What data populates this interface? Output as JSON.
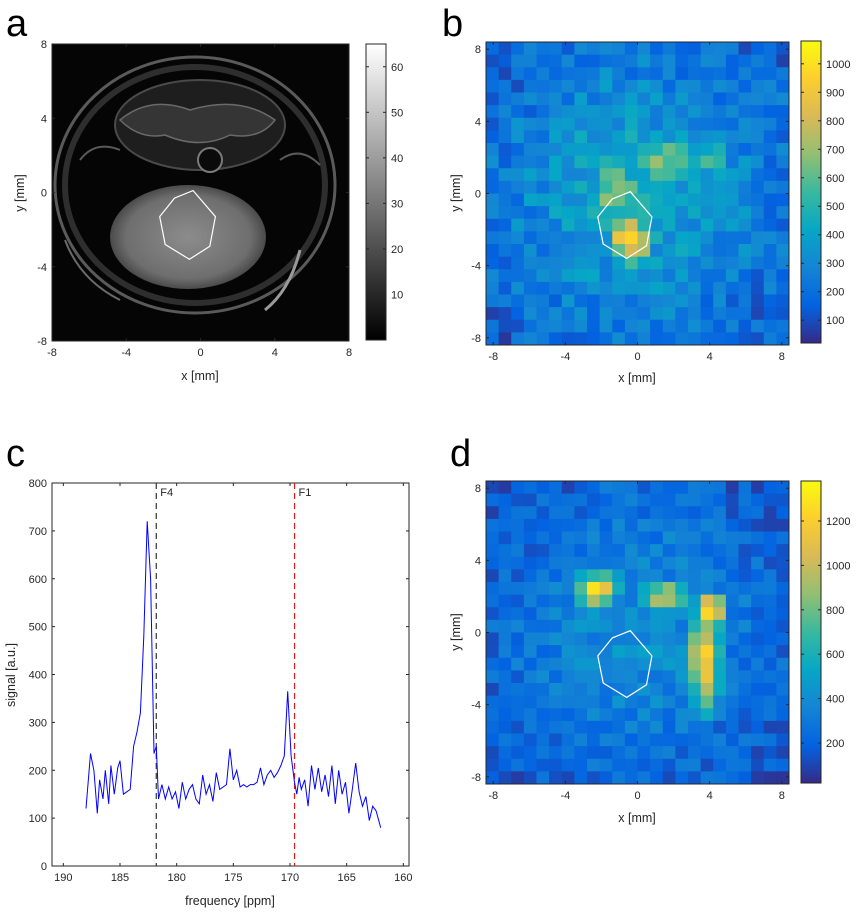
{
  "panels": {
    "a": "a",
    "b": "b",
    "c": "c",
    "d": "d"
  },
  "roi_hexagon_mm": [
    [
      -0.4,
      0.1
    ],
    [
      0.8,
      -1.3
    ],
    [
      0.5,
      -2.9
    ],
    [
      -0.6,
      -3.6
    ],
    [
      -1.9,
      -2.8
    ],
    [
      -2.2,
      -1.3
    ],
    [
      -1.4,
      -0.3
    ]
  ],
  "chart_data": [
    {
      "id": "a",
      "type": "heatmap",
      "colormap": "gray",
      "description_in_image": "grayscale anatomical MR image",
      "xlabel": "x [mm]",
      "ylabel": "y [mm]",
      "xlim": [
        -8,
        8
      ],
      "ylim": [
        -8,
        8
      ],
      "xticks": [
        -8,
        -4,
        0,
        4,
        8
      ],
      "yticks": [
        8,
        4,
        0,
        -4,
        -8
      ],
      "xtick_labels": [
        "-8",
        "-4",
        "0",
        "4",
        "8"
      ],
      "ytick_labels": [
        "8",
        "4",
        "0",
        "-4",
        "-8"
      ],
      "colorbar": {
        "lim": [
          0,
          65
        ],
        "ticks": [
          10,
          20,
          30,
          40,
          50,
          60
        ],
        "labels": [
          "10",
          "20",
          "30",
          "40",
          "50",
          "60"
        ]
      }
    },
    {
      "id": "b",
      "type": "heatmap",
      "colormap": "parula",
      "xlabel": "x [mm]",
      "ylabel": "y [mm]",
      "xlim": [
        -8.4,
        8.4
      ],
      "ylim": [
        -8.4,
        8.4
      ],
      "xticks": [
        -8,
        -4,
        0,
        4,
        8
      ],
      "yticks": [
        8,
        4,
        0,
        -4,
        -8
      ],
      "xtick_labels": [
        "-8",
        "-4",
        "0",
        "4",
        "8"
      ],
      "ytick_labels": [
        "8",
        "4",
        "0",
        "-4",
        "-8"
      ],
      "grid_size": 24,
      "hotspots": [
        {
          "x": -0.4,
          "y": -2.6,
          "value": 1060,
          "sx": 0.9,
          "sy": 1.0
        },
        {
          "x": -1.2,
          "y": 0.2,
          "value": 720,
          "sx": 1.2,
          "sy": 1.2
        },
        {
          "x": 1.4,
          "y": 1.8,
          "value": 620,
          "sx": 1.8,
          "sy": 1.2
        },
        {
          "x": 4.0,
          "y": 1.8,
          "value": 560,
          "sx": 1.2,
          "sy": 0.9
        }
      ],
      "base_value": 330,
      "colorbar": {
        "lim": [
          20,
          1080
        ],
        "ticks": [
          100,
          200,
          300,
          400,
          500,
          600,
          700,
          800,
          900,
          1000
        ],
        "labels": [
          "100",
          "200",
          "300",
          "400",
          "500",
          "600",
          "700",
          "800",
          "900",
          "1000"
        ]
      }
    },
    {
      "id": "c",
      "type": "line",
      "xlabel": "frequency [ppm]",
      "ylabel": "signal [a.u.]",
      "xlim": [
        191,
        159.5
      ],
      "ylim": [
        0,
        800
      ],
      "xticks": [
        190,
        185,
        180,
        175,
        170,
        165,
        160
      ],
      "xtick_labels": [
        "190",
        "185",
        "180",
        "175",
        "170",
        "165",
        "160"
      ],
      "yticks": [
        0,
        100,
        200,
        300,
        400,
        500,
        600,
        700,
        800
      ],
      "ytick_labels": [
        "0",
        "100",
        "200",
        "300",
        "400",
        "500",
        "600",
        "700",
        "800"
      ],
      "series": [
        {
          "name": "spectrum",
          "color": "#0000ff",
          "x": [
            188.0,
            187.6,
            187.3,
            187.0,
            186.8,
            186.5,
            186.3,
            186.0,
            185.8,
            185.5,
            185.2,
            185.0,
            184.7,
            184.4,
            184.1,
            183.8,
            183.5,
            183.2,
            182.9,
            182.6,
            182.3,
            182.0,
            181.8,
            181.6,
            181.3,
            181.0,
            180.7,
            180.4,
            180.1,
            179.8,
            179.5,
            179.2,
            178.9,
            178.6,
            178.3,
            178.0,
            177.7,
            177.4,
            177.1,
            176.8,
            176.5,
            176.2,
            175.9,
            175.6,
            175.3,
            175.0,
            174.7,
            174.4,
            174.1,
            173.8,
            173.5,
            173.2,
            172.9,
            172.6,
            172.3,
            172.0,
            171.7,
            171.4,
            171.1,
            170.8,
            170.5,
            170.2,
            169.9,
            169.6,
            169.4,
            169.2,
            169.0,
            168.7,
            168.4,
            168.1,
            167.8,
            167.5,
            167.2,
            166.9,
            166.6,
            166.3,
            166.0,
            165.7,
            165.4,
            165.1,
            164.8,
            164.5,
            164.2,
            163.9,
            163.6,
            163.3,
            163.0,
            162.7,
            162.4,
            162.0
          ],
          "y": [
            120,
            235,
            200,
            110,
            180,
            140,
            200,
            130,
            210,
            150,
            205,
            220,
            150,
            155,
            160,
            250,
            280,
            320,
            480,
            720,
            600,
            235,
            250,
            140,
            170,
            140,
            165,
            140,
            155,
            120,
            175,
            140,
            160,
            170,
            140,
            130,
            190,
            150,
            170,
            135,
            195,
            160,
            165,
            170,
            245,
            180,
            200,
            165,
            170,
            165,
            170,
            170,
            175,
            205,
            170,
            190,
            200,
            185,
            195,
            210,
            230,
            365,
            230,
            175,
            150,
            185,
            160,
            180,
            125,
            210,
            160,
            205,
            155,
            190,
            145,
            210,
            130,
            200,
            150,
            175,
            110,
            160,
            215,
            155,
            125,
            145,
            95,
            125,
            115,
            80
          ]
        }
      ],
      "vlines": [
        {
          "x": 181.8,
          "label": "F4",
          "color": "#333333"
        },
        {
          "x": 169.6,
          "label": "F1",
          "color": "#e31a1c"
        }
      ]
    },
    {
      "id": "d",
      "type": "heatmap",
      "colormap": "parula",
      "xlabel": "x [mm]",
      "ylabel": "y [mm]",
      "xlim": [
        -8.4,
        8.4
      ],
      "ylim": [
        -8.4,
        8.4
      ],
      "xticks": [
        -8,
        -4,
        0,
        4,
        8
      ],
      "yticks": [
        8,
        4,
        0,
        -4,
        -8
      ],
      "xtick_labels": [
        "-8",
        "-4",
        "0",
        "4",
        "8"
      ],
      "ytick_labels": [
        "8",
        "4",
        "0",
        "-4",
        "-8"
      ],
      "grid_size": 24,
      "hotspots": [
        {
          "x": -2.2,
          "y": 2.4,
          "value": 1320,
          "sx": 1.0,
          "sy": 0.7
        },
        {
          "x": 1.6,
          "y": 2.0,
          "value": 950,
          "sx": 1.4,
          "sy": 0.8
        },
        {
          "x": 3.7,
          "y": -1.6,
          "value": 1220,
          "sx": 0.7,
          "sy": 2.2
        },
        {
          "x": 4.0,
          "y": 1.2,
          "value": 1250,
          "sx": 0.7,
          "sy": 0.9
        }
      ],
      "base_value": 320,
      "colorbar": {
        "lim": [
          20,
          1380
        ],
        "ticks": [
          200,
          400,
          600,
          800,
          1000,
          1200
        ],
        "labels": [
          "200",
          "400",
          "600",
          "800",
          "1000",
          "1200"
        ]
      }
    }
  ]
}
